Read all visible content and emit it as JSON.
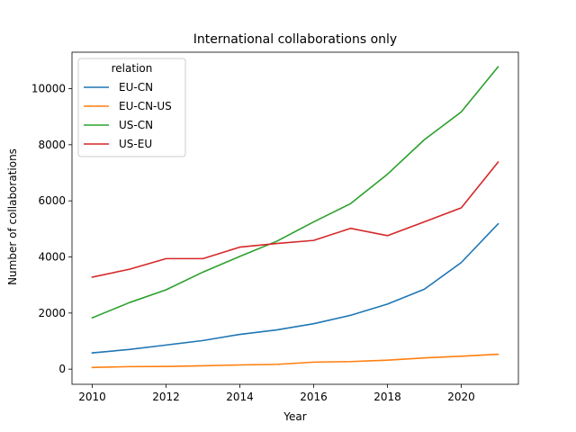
{
  "chart_data": {
    "type": "line",
    "title": "International collaborations only",
    "xlabel": "Year",
    "ylabel": "Number of collaborations",
    "x": [
      2010,
      2011,
      2012,
      2013,
      2014,
      2015,
      2016,
      2017,
      2018,
      2019,
      2020,
      2021
    ],
    "xlim": [
      2009.45,
      2021.55
    ],
    "ylim": [
      -540,
      11300
    ],
    "xticks": [
      2010,
      2012,
      2014,
      2016,
      2018,
      2020
    ],
    "yticks": [
      0,
      2000,
      4000,
      6000,
      8000,
      10000
    ],
    "grid": false,
    "legend": {
      "title": "relation",
      "placement": "top-left"
    },
    "series": [
      {
        "name": "EU-CN",
        "color": "#1f77b4",
        "values": [
          580,
          700,
          860,
          1020,
          1240,
          1400,
          1620,
          1920,
          2320,
          2850,
          3800,
          5180
        ]
      },
      {
        "name": "EU-CN-US",
        "color": "#ff7f0e",
        "values": [
          60,
          90,
          95,
          120,
          150,
          170,
          250,
          270,
          320,
          400,
          460,
          530
        ]
      },
      {
        "name": "US-CN",
        "color": "#2ca02c",
        "values": [
          1830,
          2370,
          2830,
          3460,
          4020,
          4560,
          5250,
          5900,
          6950,
          8180,
          9170,
          10780
        ]
      },
      {
        "name": "US-EU",
        "color": "#d62728",
        "values": [
          3280,
          3560,
          3940,
          3940,
          4350,
          4480,
          4590,
          5020,
          4760,
          5250,
          5750,
          7380
        ]
      }
    ]
  }
}
